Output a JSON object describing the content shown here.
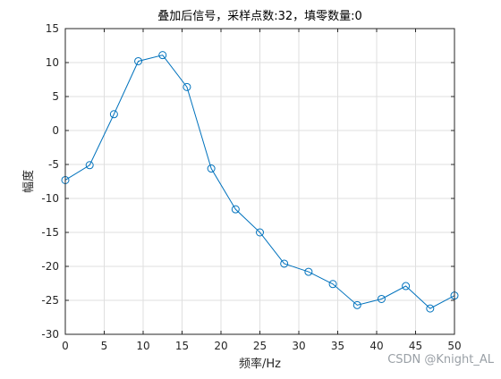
{
  "chart_data": {
    "type": "line",
    "title": "叠加后信号，采样点数:32，填零数量:0",
    "xlabel": "频率/Hz",
    "ylabel": "幅度",
    "xlim": [
      0,
      50
    ],
    "ylim": [
      -30,
      15
    ],
    "xticks": [
      0,
      5,
      10,
      15,
      20,
      25,
      30,
      35,
      40,
      45,
      50
    ],
    "yticks": [
      -30,
      -25,
      -20,
      -15,
      -10,
      -5,
      0,
      5,
      10,
      15
    ],
    "grid": true,
    "series": [
      {
        "marker": "circle",
        "color": "#0072BD",
        "x": [
          0,
          3.125,
          6.25,
          9.375,
          12.5,
          15.625,
          18.75,
          21.875,
          25,
          28.125,
          31.25,
          34.375,
          37.5,
          40.625,
          43.75,
          46.875,
          50
        ],
        "y": [
          -7.3,
          -5.1,
          2.4,
          10.2,
          11.1,
          6.4,
          -5.6,
          -11.6,
          -15.0,
          -19.6,
          -20.8,
          -22.6,
          -25.7,
          -24.8,
          -22.9,
          -26.2,
          -24.3
        ]
      }
    ]
  },
  "watermark": "CSDN @Knight_AL"
}
